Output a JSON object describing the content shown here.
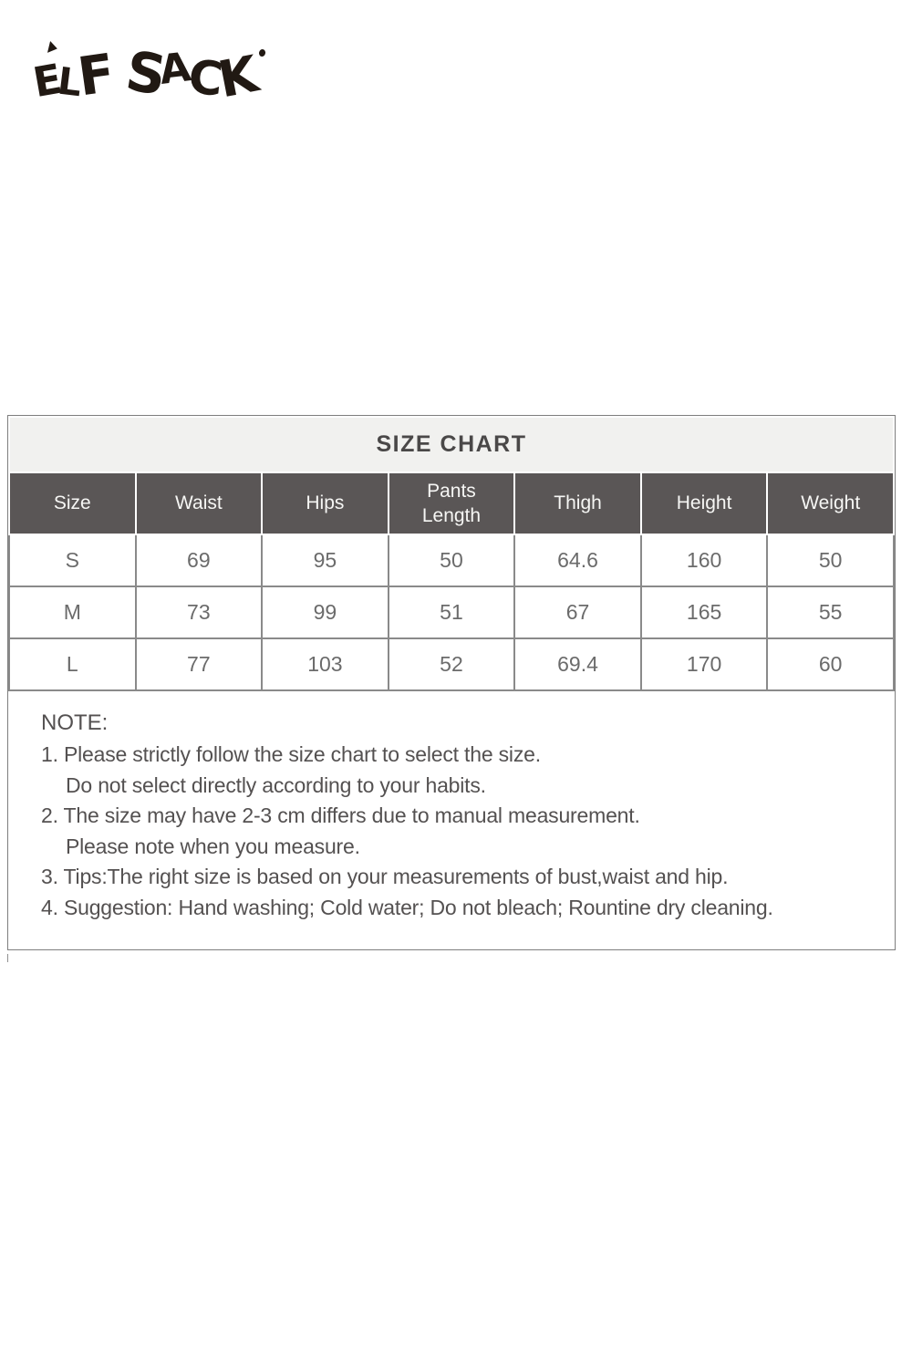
{
  "brand": {
    "name": "ELF SACK",
    "letters": [
      "E",
      "L",
      "F",
      "S",
      "A",
      "C",
      "K"
    ]
  },
  "size_chart": {
    "title": "SIZE CHART",
    "columns": [
      "Size",
      "Waist",
      "Hips",
      "Pants Length",
      "Thigh",
      "Height",
      "Weight"
    ],
    "rows": [
      {
        "size": "S",
        "values": [
          "69",
          "95",
          "50",
          "64.6",
          "160",
          "50"
        ]
      },
      {
        "size": "M",
        "values": [
          "73",
          "99",
          "51",
          "67",
          "165",
          "55"
        ]
      },
      {
        "size": "L",
        "values": [
          "77",
          "103",
          "52",
          "69.4",
          "170",
          "60"
        ]
      }
    ]
  },
  "note": {
    "heading": "NOTE:",
    "lines": [
      {
        "text": "1. Please strictly follow the size chart to select the size.",
        "indent": false
      },
      {
        "text": "Do not select directly according to your habits.",
        "indent": true
      },
      {
        "text": "2. The size may have 2-3 cm differs due to manual measurement.",
        "indent": false
      },
      {
        "text": "Please note when you measure.",
        "indent": true
      },
      {
        "text": "3. Tips:The right size is based on your measurements of bust,waist and hip.",
        "indent": false
      },
      {
        "text": "4. Suggestion: Hand washing; Cold water; Do not bleach; Rountine dry cleaning.",
        "indent": false
      }
    ]
  },
  "colors": {
    "title_bg": "#f1f1ef",
    "header_bg": "#5a5656",
    "header_text": "#f6f6f4",
    "grid_line": "#8a8a8a",
    "body_text": "#6b6b6b",
    "note_text": "#545151",
    "logo": "#211913"
  }
}
